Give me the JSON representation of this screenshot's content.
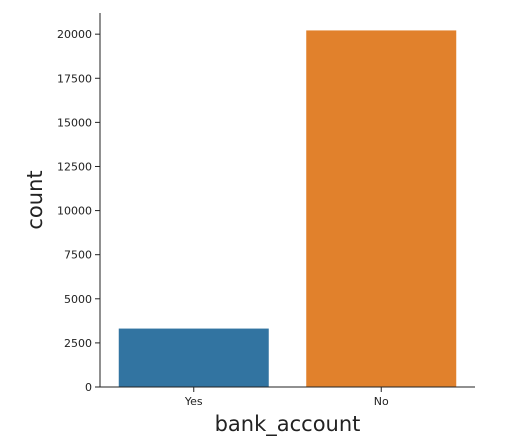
{
  "chart_data": {
    "type": "bar",
    "categories": [
      "Yes",
      "No"
    ],
    "values": [
      3312,
      20212
    ],
    "colors": [
      "#3274a1",
      "#e1812c"
    ],
    "title": "",
    "xlabel": "bank_account",
    "ylabel": "count",
    "ylim": [
      0,
      21200
    ],
    "yticks": [
      0,
      2500,
      5000,
      7500,
      10000,
      12500,
      15000,
      17500,
      20000
    ],
    "grid": false,
    "legend": "none"
  }
}
